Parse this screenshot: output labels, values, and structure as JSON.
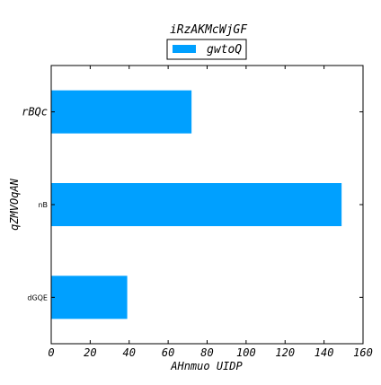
{
  "chart_data": {
    "type": "bar",
    "orientation": "horizontal",
    "title": "iRzAKMcWjGF",
    "xlabel": "AHnmuo UIDP",
    "ylabel": "qZMVOqAN",
    "categories": [
      "dGQE",
      "nB",
      "rBQc"
    ],
    "series": [
      {
        "name": "gwtoQ",
        "values": [
          39,
          149,
          72
        ],
        "color": "#00a0ff"
      }
    ],
    "xlim": [
      0,
      160
    ],
    "xticks": [
      0,
      20,
      40,
      60,
      80,
      100,
      120,
      140,
      160
    ],
    "grid": false,
    "legend": "top-center"
  }
}
